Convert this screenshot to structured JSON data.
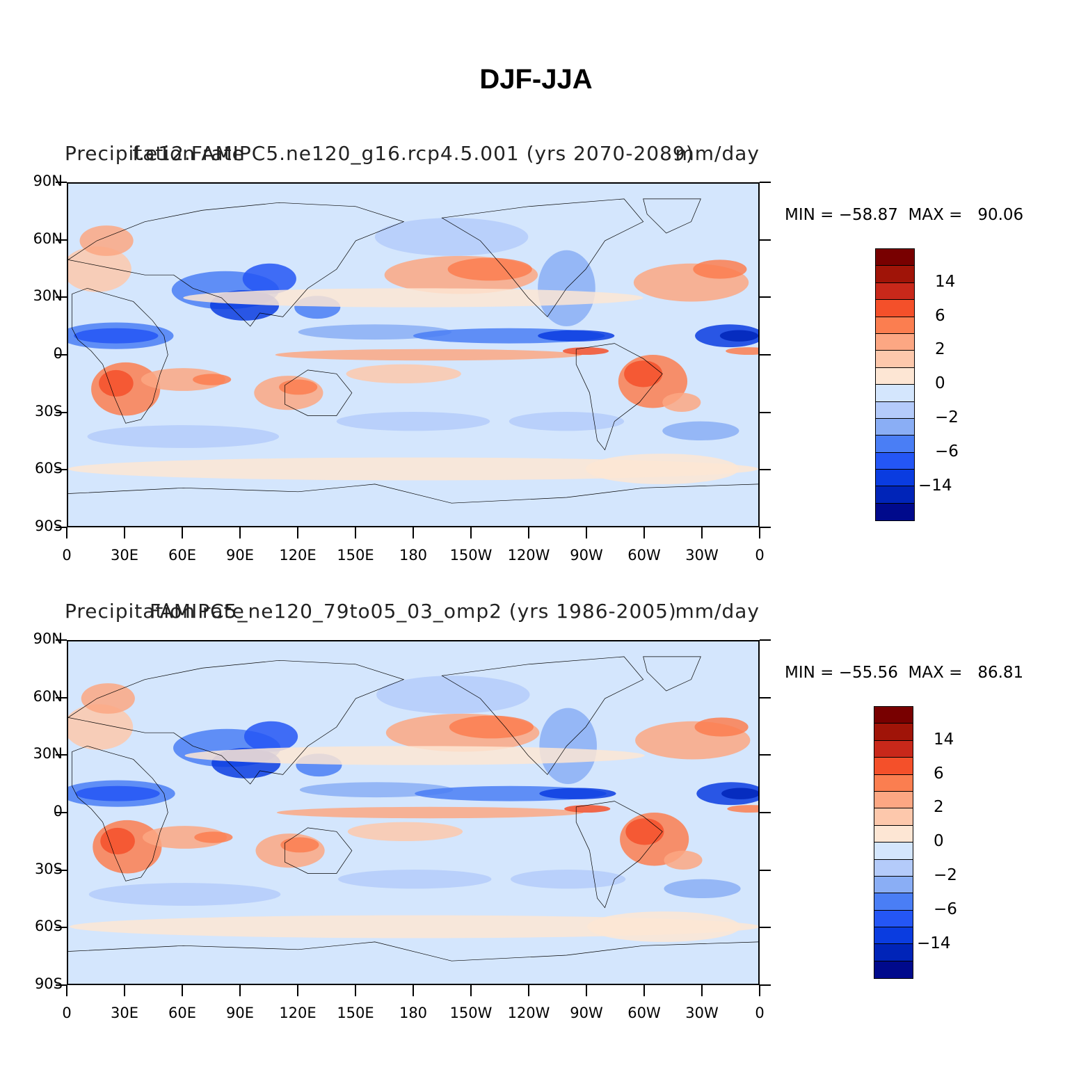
{
  "figure_title": "DJF-JJA",
  "colors": {
    "palette": [
      "#000a8c",
      "#0024b8",
      "#0a3ce0",
      "#2456f5",
      "#4a7ef5",
      "#8aaef5",
      "#b4cbfa",
      "#d4e6fd",
      "#fde6d4",
      "#fdc8ac",
      "#fca783",
      "#fb7e50",
      "#f4502a",
      "#c8281a",
      "#a01408",
      "#780000"
    ],
    "ocean_default": "#d4e6fd",
    "coastline": "#000000"
  },
  "colorbar": {
    "labels": [
      "14",
      "6",
      "2",
      "0",
      "−2",
      "−6",
      "−14"
    ]
  },
  "axes": {
    "y_ticks": [
      "90N",
      "60N",
      "30N",
      "0",
      "30S",
      "60S",
      "90S"
    ],
    "x_ticks": [
      "0",
      "30E",
      "60E",
      "90E",
      "120E",
      "150E",
      "180",
      "150W",
      "120W",
      "90W",
      "60W",
      "30W",
      "0"
    ]
  },
  "panels": [
    {
      "left_title": "Precipitation rate",
      "center_title": "f.e12.FAMIPC5.ne120_g16.rcp4.5.001 (yrs 2070-2089)",
      "right_title": "mm/day",
      "min_label": "MIN =",
      "min_value": "−58.87",
      "max_label": "MAX =",
      "max_value": "90.06"
    },
    {
      "left_title": "Precipitation rate",
      "center_title": "FAMIPC5_ne120_79to05_03_omp2 (yrs 1986-2005)",
      "right_title": "mm/day",
      "min_label": "MIN =",
      "min_value": "−55.56",
      "max_label": "MAX =",
      "max_value": "86.81"
    }
  ],
  "chart_data": {
    "type": "heatmap",
    "title": "DJF-JJA",
    "variable": "Precipitation rate",
    "units": "mm/day",
    "x_range": [
      0,
      360
    ],
    "y_range": [
      -90,
      90
    ],
    "contour_levels": [
      -14,
      -6,
      -2,
      0,
      2,
      6,
      14
    ],
    "panels": [
      {
        "case": "f.e12.FAMIPC5.ne120_g16.rcp4.5.001 (yrs 2070-2089)",
        "min": -58.87,
        "max": 90.06
      },
      {
        "case": "FAMIPC5_ne120_79to05_03_omp2 (yrs 1986-2005)",
        "min": -55.56,
        "max": 86.81
      }
    ]
  }
}
